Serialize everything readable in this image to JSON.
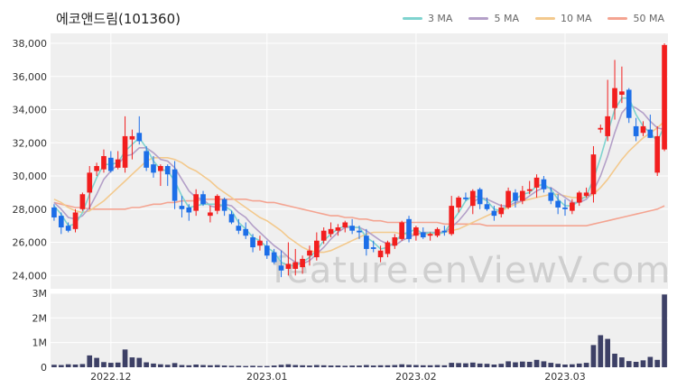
{
  "header": {
    "title": "에코앤드림(101360)"
  },
  "legend": [
    {
      "label": "3 MA",
      "color": "#7fd3cf"
    },
    {
      "label": "5 MA",
      "color": "#b4a0c8"
    },
    {
      "label": "10 MA",
      "color": "#f3c98d"
    },
    {
      "label": "50 MA",
      "color": "#f4a491"
    }
  ],
  "watermark": "feature.enViewV.com",
  "colors": {
    "up": "#f21e1e",
    "down": "#1c6ee8",
    "volume": "#3d4066",
    "grid": "#ffffff",
    "plot_bg": "#efefef"
  },
  "chart_data": {
    "type": "candlestick",
    "y_ticks": [
      "38,000",
      "36,000",
      "34,000",
      "32,000",
      "30,000",
      "28,000",
      "26,000",
      "24,000"
    ],
    "y_tick_values": [
      38000,
      36000,
      34000,
      32000,
      30000,
      28000,
      26000,
      24000
    ],
    "ylim": [
      23200,
      38600
    ],
    "x_tick_labels": [
      "2022.12",
      "2023.01",
      "2023.02",
      "2023.03"
    ],
    "x_tick_index": [
      8,
      30,
      51,
      72
    ],
    "volume_ticks": [
      "3M",
      "2M",
      "1M",
      "0"
    ],
    "volume_tick_values": [
      3000000,
      2000000,
      1000000,
      0
    ],
    "volume_lim": [
      0,
      3000000
    ],
    "candles": [
      [
        28100,
        28300,
        27300,
        27500
      ],
      [
        27600,
        27800,
        26500,
        26900
      ],
      [
        27000,
        27200,
        26600,
        26700
      ],
      [
        26800,
        28000,
        26600,
        27800
      ],
      [
        28000,
        29000,
        27900,
        28900
      ],
      [
        29000,
        30600,
        28000,
        30200
      ],
      [
        30300,
        30800,
        30000,
        30600
      ],
      [
        30400,
        31600,
        30200,
        31200
      ],
      [
        31100,
        31500,
        30200,
        30300
      ],
      [
        30500,
        31500,
        30400,
        31000
      ],
      [
        30500,
        33600,
        30200,
        32400
      ],
      [
        32200,
        32800,
        31000,
        32400
      ],
      [
        32600,
        33600,
        31900,
        32100
      ],
      [
        31500,
        31800,
        30300,
        30500
      ],
      [
        30700,
        31200,
        29900,
        30200
      ],
      [
        30300,
        30700,
        29400,
        30600
      ],
      [
        30600,
        30700,
        29400,
        30100
      ],
      [
        30400,
        30900,
        28000,
        28500
      ],
      [
        28200,
        28800,
        27500,
        28000
      ],
      [
        28100,
        28300,
        27300,
        27800
      ],
      [
        27900,
        29200,
        27600,
        28900
      ],
      [
        28900,
        29100,
        28200,
        28300
      ],
      [
        27600,
        28200,
        27200,
        27800
      ],
      [
        27900,
        28900,
        27700,
        28800
      ],
      [
        28600,
        28700,
        27600,
        27900
      ],
      [
        27700,
        27900,
        27100,
        27200
      ],
      [
        27000,
        27400,
        26500,
        26700
      ],
      [
        26800,
        27200,
        26200,
        26400
      ],
      [
        26300,
        26500,
        25400,
        25700
      ],
      [
        25800,
        26400,
        25500,
        26100
      ],
      [
        25800,
        26100,
        25000,
        25200
      ],
      [
        25400,
        25600,
        24700,
        24800
      ],
      [
        24600,
        25500,
        23900,
        24300
      ],
      [
        24400,
        26000,
        24000,
        24700
      ],
      [
        24400,
        25600,
        24000,
        24800
      ],
      [
        24500,
        25200,
        24100,
        25000
      ],
      [
        25200,
        25800,
        24600,
        25500
      ],
      [
        25100,
        26600,
        24900,
        26100
      ],
      [
        26100,
        26900,
        25900,
        26700
      ],
      [
        26500,
        27200,
        26300,
        26800
      ],
      [
        26700,
        27100,
        26400,
        26900
      ],
      [
        26900,
        27300,
        26600,
        27200
      ],
      [
        27000,
        27400,
        26500,
        26700
      ],
      [
        26700,
        27000,
        26200,
        26600
      ],
      [
        26400,
        26800,
        25200,
        25600
      ],
      [
        25700,
        26100,
        25400,
        25600
      ],
      [
        25100,
        25800,
        24800,
        25500
      ],
      [
        25300,
        26100,
        25100,
        26000
      ],
      [
        25800,
        26500,
        25600,
        26300
      ],
      [
        26200,
        27300,
        26100,
        27200
      ],
      [
        27400,
        27600,
        26000,
        26200
      ],
      [
        26400,
        27000,
        26100,
        26900
      ],
      [
        26600,
        26900,
        26200,
        26300
      ],
      [
        26400,
        26600,
        26100,
        26500
      ],
      [
        26400,
        26900,
        26300,
        26800
      ],
      [
        26700,
        27000,
        26400,
        26600
      ],
      [
        26500,
        28800,
        26400,
        28200
      ],
      [
        28100,
        28800,
        27800,
        28700
      ],
      [
        28700,
        29000,
        28500,
        28600
      ],
      [
        28200,
        29200,
        27700,
        29100
      ],
      [
        29200,
        29300,
        28000,
        28300
      ],
      [
        28300,
        28700,
        27900,
        28000
      ],
      [
        27900,
        28200,
        27300,
        27600
      ],
      [
        27700,
        28300,
        27500,
        28100
      ],
      [
        28100,
        29300,
        28000,
        29100
      ],
      [
        29000,
        29200,
        28100,
        28500
      ],
      [
        28500,
        29400,
        28300,
        29100
      ],
      [
        29100,
        29700,
        28900,
        29200
      ],
      [
        29300,
        30100,
        28700,
        29900
      ],
      [
        29800,
        30000,
        29000,
        29200
      ],
      [
        29000,
        29300,
        28300,
        28500
      ],
      [
        28500,
        28900,
        27700,
        28100
      ],
      [
        28100,
        28600,
        27600,
        28000
      ],
      [
        27900,
        28600,
        27700,
        28400
      ],
      [
        28400,
        29100,
        28200,
        29000
      ],
      [
        28800,
        29300,
        28700,
        29000
      ],
      [
        28900,
        31800,
        28400,
        31300
      ],
      [
        32800,
        33100,
        32600,
        32900
      ],
      [
        32400,
        35800,
        32100,
        33600
      ],
      [
        34100,
        37000,
        33400,
        35300
      ],
      [
        34900,
        36600,
        34400,
        35100
      ],
      [
        35200,
        35300,
        33200,
        33500
      ],
      [
        33000,
        33500,
        32100,
        32400
      ],
      [
        32600,
        33300,
        32400,
        33000
      ],
      [
        32800,
        33700,
        32300,
        32300
      ],
      [
        30200,
        33000,
        30000,
        32400
      ],
      [
        31600,
        38000,
        31500,
        37900
      ]
    ],
    "volume": [
      100000,
      90000,
      120000,
      110000,
      130000,
      480000,
      380000,
      210000,
      180000,
      190000,
      720000,
      400000,
      380000,
      200000,
      150000,
      120000,
      100000,
      170000,
      90000,
      80000,
      110000,
      90000,
      80000,
      90000,
      70000,
      60000,
      60000,
      50000,
      60000,
      50000,
      50000,
      70000,
      100000,
      120000,
      90000,
      80000,
      70000,
      90000,
      80000,
      70000,
      70000,
      60000,
      70000,
      70000,
      90000,
      70000,
      80000,
      80000,
      90000,
      120000,
      100000,
      90000,
      80000,
      80000,
      90000,
      80000,
      180000,
      170000,
      160000,
      190000,
      150000,
      140000,
      110000,
      140000,
      240000,
      200000,
      230000,
      220000,
      300000,
      240000,
      180000,
      140000,
      110000,
      120000,
      150000,
      180000,
      900000,
      1300000,
      1150000,
      550000,
      400000,
      250000,
      220000,
      280000,
      420000,
      300000,
      2950000
    ],
    "ma3": [
      28200,
      27700,
      27000,
      27100,
      27800,
      28900,
      29900,
      30700,
      30700,
      30800,
      31500,
      31900,
      32300,
      31700,
      30900,
      30400,
      30300,
      29700,
      28800,
      28100,
      28200,
      28300,
      28300,
      28300,
      28200,
      27900,
      27200,
      26800,
      26300,
      26100,
      25700,
      25400,
      24800,
      24600,
      24600,
      24800,
      25100,
      25500,
      26100,
      26500,
      26800,
      27000,
      26900,
      26900,
      26300,
      26000,
      25600,
      25700,
      26000,
      26500,
      26600,
      26800,
      26500,
      26600,
      26500,
      26600,
      27200,
      27800,
      28500,
      28800,
      28700,
      28500,
      28000,
      27900,
      28300,
      28600,
      28900,
      29000,
      29400,
      29500,
      29200,
      28600,
      28200,
      28200,
      28500,
      28800,
      29800,
      31100,
      32600,
      34000,
      34700,
      34700,
      33700,
      33000,
      32600,
      32100,
      33000
    ],
    "ma5": [
      28400,
      28000,
      27500,
      27400,
      27600,
      28100,
      28900,
      29800,
      30300,
      30700,
      31200,
      31300,
      31700,
      31700,
      31400,
      31000,
      30900,
      30500,
      29800,
      29100,
      28700,
      28600,
      28200,
      28100,
      28300,
      28200,
      27800,
      27500,
      27000,
      26600,
      26200,
      25800,
      25500,
      25100,
      24800,
      24700,
      24900,
      25300,
      25700,
      26200,
      26600,
      26900,
      26900,
      26900,
      26700,
      26400,
      26100,
      25900,
      25800,
      26100,
      26300,
      26500,
      26600,
      26600,
      26600,
      26600,
      26900,
      27300,
      27800,
      28400,
      28700,
      28600,
      28400,
      28200,
      28200,
      28400,
      28500,
      28800,
      29100,
      29300,
      29300,
      29000,
      28700,
      28400,
      28400,
      28600,
      29100,
      30000,
      31200,
      32600,
      33800,
      34300,
      34100,
      33800,
      33300,
      32900,
      32800
    ],
    "ma10": [
      28600,
      28400,
      28100,
      27900,
      27800,
      27900,
      28200,
      28500,
      28900,
      29300,
      29700,
      30100,
      30500,
      30900,
      31100,
      31100,
      31100,
      31000,
      30800,
      30500,
      30300,
      30000,
      29700,
      29300,
      29000,
      28700,
      28400,
      28100,
      27800,
      27500,
      27300,
      27000,
      26700,
      26300,
      26000,
      25700,
      25500,
      25400,
      25400,
      25500,
      25700,
      25900,
      26100,
      26300,
      26500,
      26600,
      26600,
      26600,
      26600,
      26500,
      26500,
      26500,
      26500,
      26500,
      26600,
      26600,
      26700,
      26800,
      27000,
      27200,
      27400,
      27600,
      27800,
      27900,
      28100,
      28300,
      28500,
      28600,
      28700,
      28800,
      28900,
      28900,
      28800,
      28700,
      28700,
      28700,
      28900,
      29300,
      29800,
      30400,
      31000,
      31500,
      31900,
      32300,
      32600,
      32900,
      33300
    ],
    "ma50": [
      28400,
      28300,
      28200,
      28100,
      28100,
      28000,
      28000,
      28000,
      28000,
      28000,
      28000,
      28100,
      28100,
      28200,
      28300,
      28300,
      28400,
      28400,
      28500,
      28500,
      28500,
      28600,
      28600,
      28600,
      28600,
      28600,
      28600,
      28600,
      28500,
      28500,
      28400,
      28400,
      28300,
      28200,
      28100,
      28000,
      27900,
      27800,
      27700,
      27600,
      27600,
      27500,
      27500,
      27400,
      27400,
      27300,
      27300,
      27200,
      27200,
      27200,
      27200,
      27200,
      27200,
      27200,
      27200,
      27100,
      27100,
      27100,
      27100,
      27100,
      27100,
      27000,
      27000,
      27000,
      27000,
      27000,
      27000,
      27000,
      27000,
      27000,
      27000,
      27000,
      27000,
      27000,
      27000,
      27000,
      27100,
      27200,
      27300,
      27400,
      27500,
      27600,
      27700,
      27800,
      27900,
      28000,
      28200
    ]
  }
}
